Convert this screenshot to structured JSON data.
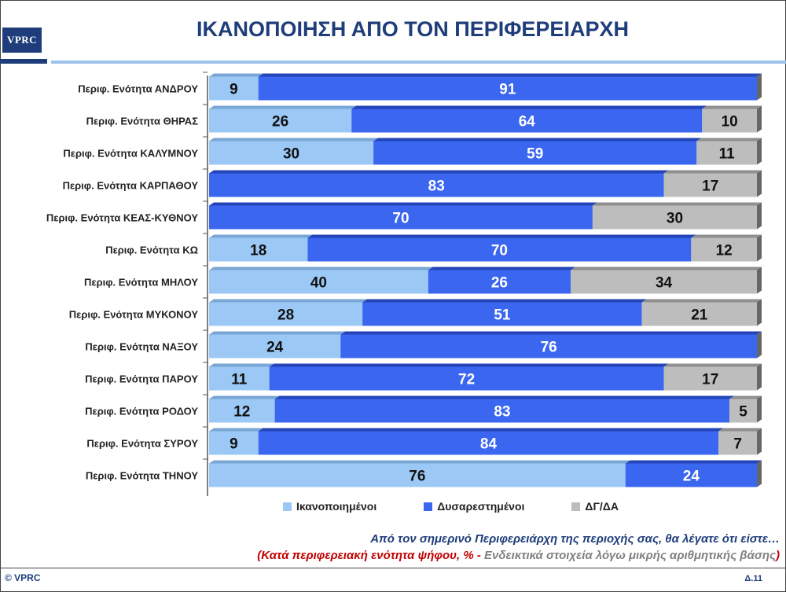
{
  "header": {
    "logo_text": "VPRC",
    "title": "ΙΚΑΝΟΠΟΙΗΣΗ ΑΠΟ ΤΟΝ ΠΕΡΙΦΕΡΕΙΑΡΧΗ"
  },
  "colors": {
    "satisfied": "#9cc8f5",
    "dissatisfied": "#3a66f0",
    "dk": "#bdbdbd",
    "title": "#1f3d7a"
  },
  "chart_data": {
    "type": "bar",
    "stacked": true,
    "orientation": "horizontal",
    "categories": [
      "Περιφ. Ενότητα ΑΝΔΡΟΥ",
      "Περιφ. Ενότητα ΘΗΡΑΣ",
      "Περιφ. Ενότητα ΚΑΛΥΜΝΟΥ",
      "Περιφ. Ενότητα ΚΑΡΠΑΘΟΥ",
      "Περιφ. Ενότητα ΚΕΑΣ-ΚΥΘΝΟΥ",
      "Περιφ. Ενότητα ΚΩ",
      "Περιφ. Ενότητα ΜΗΛΟΥ",
      "Περιφ. Ενότητα ΜΥΚΟΝΟΥ",
      "Περιφ. Ενότητα ΝΑΞΟΥ",
      "Περιφ. Ενότητα ΠΑΡΟΥ",
      "Περιφ. Ενότητα ΡΟΔΟΥ",
      "Περιφ. Ενότητα ΣΥΡΟΥ",
      "Περιφ. Ενότητα ΤΗΝΟΥ"
    ],
    "series": [
      {
        "name": "Ικανοποιημένοι",
        "values": [
          9,
          26,
          30,
          0,
          0,
          18,
          40,
          28,
          24,
          11,
          12,
          9,
          76
        ]
      },
      {
        "name": "Δυσαρεστημένοι",
        "values": [
          91,
          64,
          59,
          83,
          70,
          70,
          26,
          51,
          76,
          72,
          83,
          84,
          24
        ]
      },
      {
        "name": "ΔΓ/ΔΑ",
        "values": [
          0,
          10,
          11,
          17,
          30,
          12,
          34,
          21,
          0,
          17,
          5,
          7,
          0
        ]
      }
    ],
    "xlim": [
      0,
      100
    ],
    "legend_position": "bottom"
  },
  "notes": {
    "question": "Από τον σημερινό Περιφερειάρχη της περιοχής σας, θα λέγατε ότι είστε…",
    "open_paren": "(",
    "red_part": "Κατά περιφερειακή ενότητα ψήφου, % -",
    "gray_part": " Ενδεικτικά στοιχεία λόγω μικρής αριθμητικής βάσης",
    "close_paren": ")"
  },
  "footer": {
    "copyright": "© VPRC",
    "page": "Δ.11"
  }
}
